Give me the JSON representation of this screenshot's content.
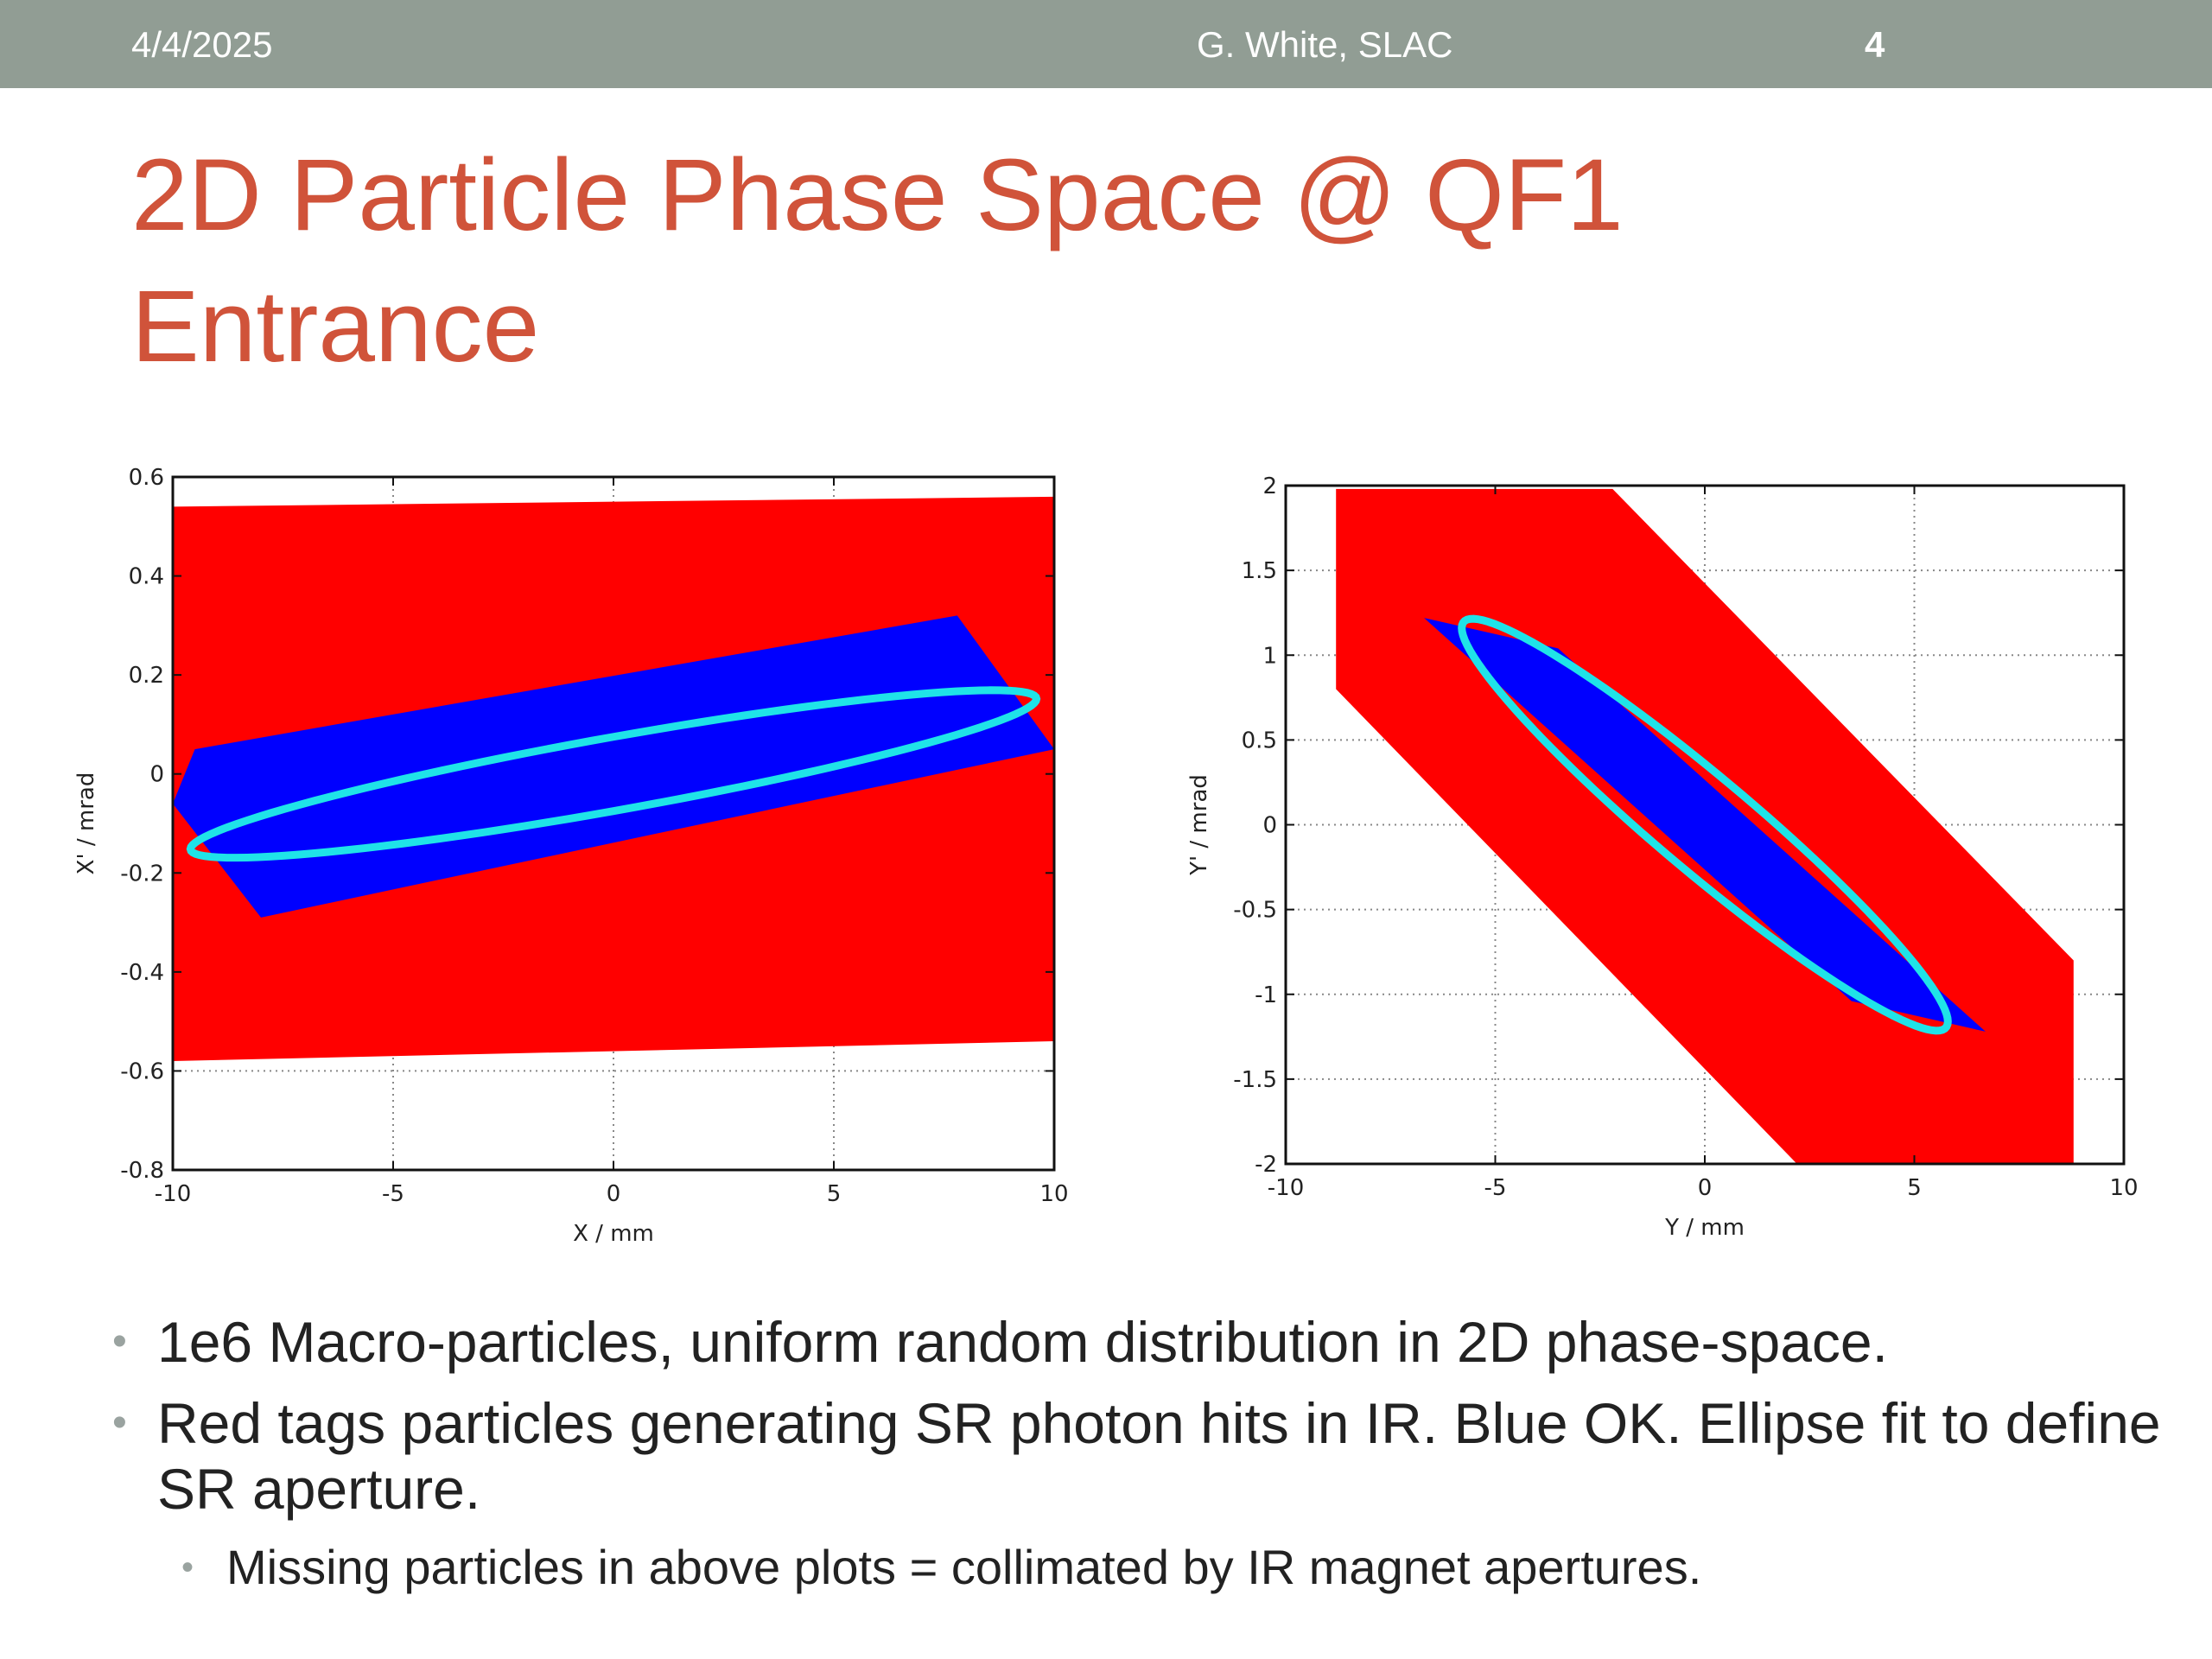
{
  "header": {
    "date": "4/4/2025",
    "author": "G. White, SLAC",
    "page": "4"
  },
  "title": {
    "line1": "2D Particle Phase Space @ QF1",
    "line2": "Entrance"
  },
  "colors": {
    "header_bg": "#919d94",
    "title": "#d0533a",
    "red_tag": "#ff0000",
    "blue_ok": "#0000ff",
    "ellipse": "#1fe3e8"
  },
  "chart_data": [
    {
      "type": "scatter",
      "title": "",
      "xlabel": "X / mm",
      "ylabel": "X' / mrad",
      "xlim": [
        -10,
        10
      ],
      "ylim": [
        -0.8,
        0.6
      ],
      "xticks": [
        -10,
        -5,
        0,
        5,
        10
      ],
      "yticks": [
        0.6,
        0.4,
        0.2,
        0,
        -0.2,
        -0.4,
        -0.6,
        -0.8
      ],
      "series": [
        {
          "name": "Red (SR photon hits in IR)",
          "color": "#ff0000",
          "polygon": [
            [
              -10,
              -0.58
            ],
            [
              -10,
              0.54
            ],
            [
              10,
              0.56
            ],
            [
              10,
              -0.54
            ]
          ]
        },
        {
          "name": "Blue (OK)",
          "color": "#0000ff",
          "polygon": [
            [
              -9.5,
              0.05
            ],
            [
              7.8,
              0.32
            ],
            [
              10,
              0.05
            ],
            [
              -8,
              -0.29
            ],
            [
              -10,
              -0.06
            ]
          ]
        },
        {
          "name": "Ellipse fit",
          "color": "#1fe3e8",
          "ellipse": {
            "cx": 0,
            "cy": 0,
            "rx": 9.6,
            "ry": 0.075,
            "slope": 0.0158
          }
        }
      ]
    },
    {
      "type": "scatter",
      "title": "",
      "xlabel": "Y / mm",
      "ylabel": "Y' / mrad",
      "xlim": [
        -10,
        10
      ],
      "ylim": [
        -2,
        2
      ],
      "xticks": [
        -10,
        -5,
        0,
        5,
        10
      ],
      "yticks": [
        2,
        1.5,
        1,
        0.5,
        0,
        -0.5,
        -1,
        -1.5,
        -2
      ],
      "series": [
        {
          "name": "Red (SR photon hits in IR)",
          "color": "#ff0000",
          "polygon": [
            [
              -8.8,
              1.98
            ],
            [
              -2.2,
              1.98
            ],
            [
              8.8,
              -0.8
            ],
            [
              8.8,
              -2
            ],
            [
              2.2,
              -2
            ],
            [
              -8.8,
              0.8
            ]
          ]
        },
        {
          "name": "Blue (OK)",
          "color": "#0000ff",
          "polygon": [
            [
              -6.7,
              1.22
            ],
            [
              -3.5,
              1.04
            ],
            [
              6.7,
              -1.22
            ],
            [
              3.5,
              -1.04
            ]
          ]
        },
        {
          "name": "Ellipse fit",
          "color": "#1fe3e8",
          "ellipse": {
            "cx": 0,
            "cy": 0,
            "rx": 5.8,
            "ry": 0.36,
            "slope": -0.2
          }
        }
      ]
    }
  ],
  "bullets": [
    "1e6 Macro-particles, uniform random distribution in 2D phase-space.",
    "Red tags particles generating SR photon hits in IR. Blue OK. Ellipse fit to define SR aperture."
  ],
  "sub_bullets": [
    "Missing particles in above plots = collimated by IR magnet apertures."
  ]
}
